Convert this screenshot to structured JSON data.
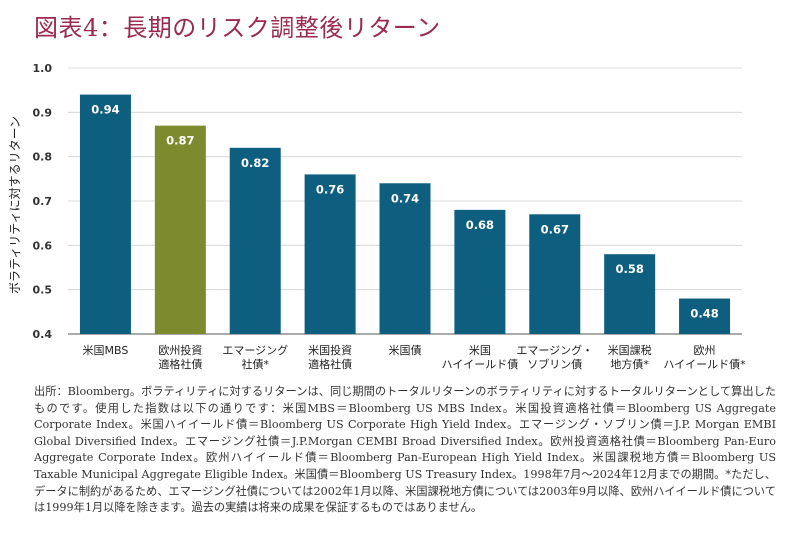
{
  "title": "図表4：長期のリスク調整後リターン",
  "chart_data": {
    "type": "bar",
    "categories": [
      [
        "米国MBS"
      ],
      [
        "欧州投資",
        "適格社債"
      ],
      [
        "エマージング",
        "社債*"
      ],
      [
        "米国投資",
        "適格社債"
      ],
      [
        "米国債"
      ],
      [
        "米国",
        "ハイイールド債"
      ],
      [
        "エマージング・",
        "ソブリン債"
      ],
      [
        "米国課税",
        "地方債*"
      ],
      [
        "欧州",
        "ハイイールド債*"
      ]
    ],
    "values": [
      0.94,
      0.87,
      0.82,
      0.76,
      0.74,
      0.68,
      0.67,
      0.58,
      0.48
    ],
    "value_labels": [
      "0.94",
      "0.87",
      "0.82",
      "0.76",
      "0.74",
      "0.68",
      "0.67",
      "0.58",
      "0.48"
    ],
    "ylabel": "ボラティリティに対するリターン",
    "ylim": [
      0.4,
      1.0
    ],
    "yticks": [
      "0.4",
      "0.5",
      "0.6",
      "0.7",
      "0.8",
      "0.9",
      "1.0"
    ],
    "grid": true,
    "colors": {
      "bar": "#0e5f7f",
      "highlight": "#7d8b2e",
      "highlight_index": 1,
      "grid": "#d0d0d0",
      "title": "#9a2a50"
    }
  },
  "source_note": "出所：Bloomberg。ボラティリティに対するリターンは、同じ期間のトータルリターンのボラティリティに対するトータルリターンとして算出したものです。使用した指数は以下の通りです：米国MBS＝Bloomberg US MBS Index。米国投資適格社債＝Bloomberg US Aggregate Corporate Index。米国ハイイールド債＝Bloomberg US Corporate High Yield Index。エマージング・ソブリン債＝J.P. Morgan EMBI Global Diversified Index。エマージング社債＝J.P.Morgan CEMBI Broad Diversified Index。欧州投資適格社債＝Bloomberg Pan-Euro Aggregate Corporate Index。欧州ハイイールド債＝Bloomberg Pan-European High Yield Index。米国課税地方債＝Bloomberg US Taxable Municipal Aggregate Eligible Index。米国債＝Bloomberg US Treasury Index。1998年7月～2024年12月までの期間。*ただし、データに制約があるため、エマージング社債については2002年1月以降、米国課税地方債については2003年9月以降、欧州ハイイールド債については1999年1月以降を除きます。過去の実績は将来の成果を保証するものではありません。"
}
